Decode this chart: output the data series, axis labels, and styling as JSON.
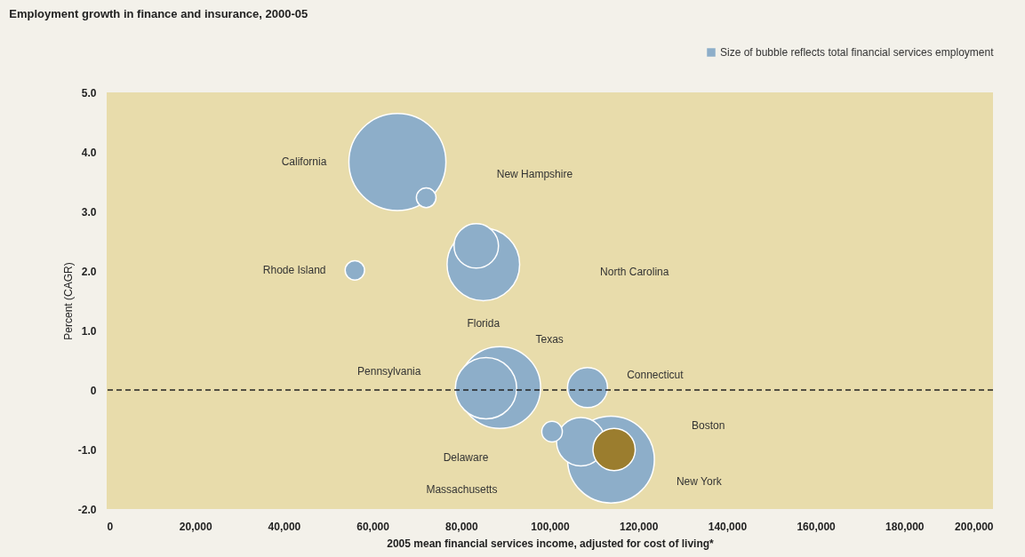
{
  "chart_data": {
    "type": "bubble",
    "title": "Employment growth in finance and insurance, 2000-05",
    "xlabel": "2005 mean financial services income, adjusted for cost of living*",
    "ylabel": "Percent (CAGR)",
    "series": [
      {
        "name": "Size of bubble reflects total financial services employment",
        "color": "#8daec9",
        "x": [
          65600,
          72100,
          85000,
          83400,
          56000,
          88700,
          85600,
          108500,
          113800,
          107000,
          100500,
          114500
        ],
        "values": [
          3.83,
          3.23,
          2.11,
          2.42,
          2.01,
          0.04,
          0.03,
          0.04,
          -1.17,
          -0.87,
          -0.7,
          -1.0
        ],
        "sizes": [
          1,
          0.041,
          0.56,
          0.21,
          0.04,
          0.71,
          0.4,
          0.17,
          0.8,
          0.25,
          0.045,
          0.19
        ],
        "colors": [
          "#8daec9",
          "#8daec9",
          "#8daec9",
          "#8daec9",
          "#8daec9",
          "#8daec9",
          "#8daec9",
          "#8daec9",
          "#8daec9",
          "#8daec9",
          "#8daec9",
          "#9b7d2e"
        ]
      }
    ],
    "annotations": [
      "California",
      "New Hampshire",
      "Florida",
      "North Carolina",
      "Rhode Island",
      "Texas",
      "Pennsylvania",
      "Connecticut",
      "New York",
      "Massachusetts",
      "Delaware",
      "Boston"
    ],
    "xlim": [
      0,
      200000
    ],
    "ylim": [
      -2,
      5
    ],
    "xticks": [
      0,
      {
        "value": 20000,
        "label": "20,000"
      },
      {
        "value": 40000,
        "label": "40,000"
      },
      {
        "value": 60000,
        "label": "60,000"
      },
      {
        "value": 80000,
        "label": "80,000"
      },
      {
        "value": 100000,
        "label": "100,000"
      },
      {
        "value": 120000,
        "label": "120,000"
      },
      {
        "value": 140000,
        "label": "140,000"
      },
      {
        "value": 160000,
        "label": "160,000"
      },
      {
        "value": 180000,
        "label": "180,000"
      },
      {
        "value": 200000,
        "label": "200,000"
      }
    ],
    "yticks": [
      {
        "value": -2,
        "label": "-2.0"
      },
      {
        "value": -1,
        "label": "-1.0"
      },
      0,
      {
        "value": 1,
        "label": "1.0"
      },
      {
        "value": 2,
        "label": "2.0"
      },
      {
        "value": 3,
        "label": "3.0"
      },
      {
        "value": 4,
        "label": "4.0"
      },
      {
        "value": 5,
        "label": "5.0"
      }
    ],
    "ref_lines": [
      {
        "axis": "y",
        "value": 0,
        "line_style": "dashed",
        "color": "#222222"
      }
    ],
    "grid": false,
    "legend": "top right"
  }
}
